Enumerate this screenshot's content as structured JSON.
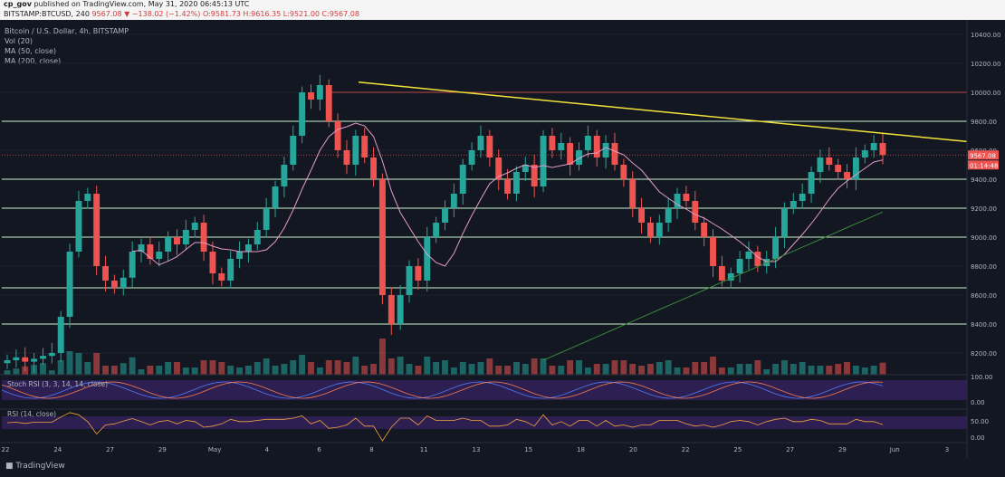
{
  "header": {
    "author": "cp_gov",
    "published_text": "published on TradingView.com, May 31, 2020 06:45:13 UTC",
    "symbol": "BITSTAMP:BTCUSD, 240",
    "last_price": "9567.08",
    "change": "▼ −138.02 (−1.42%)",
    "ohlc": "O:9581.73 H:9616.35 L:9521.00 C:9567.08"
  },
  "legend": {
    "symbol_line": "Bitcoin / U.S. Dollar, 4h, BITSTAMP",
    "vol": "Vol (20)",
    "ma1": "MA (50, close)",
    "ma2": "MA (200, close)"
  },
  "price_tags": {
    "last": "9567.08",
    "countdown": "01:14:48"
  },
  "indicators": {
    "stoch_label": "Stoch RSI (3, 3, 14, 14, close)",
    "rsi_label": "RSI (14, close)",
    "stoch_axis": [
      "100.00",
      "0.00"
    ],
    "rsi_axis": [
      "50.00",
      "0.00"
    ]
  },
  "footer": {
    "brand": "TradingView"
  },
  "colors": {
    "background": "#131722",
    "up": "#26a69a",
    "down": "#ef5350",
    "trendline": "#f2e33a",
    "support": "#c8f5c8",
    "resistance": "#b84a4a",
    "ma50": "#e29cc9",
    "ma200": "#3a8a3a"
  },
  "chart_data": {
    "type": "candlestick",
    "title": "Bitcoin / U.S. Dollar, 4h, BITSTAMP",
    "ylim": [
      8050,
      10500
    ],
    "y_ticks": [
      "10400.00",
      "10200.00",
      "10000.00",
      "9800.00",
      "9600.00",
      "9400.00",
      "9200.00",
      "9000.00",
      "8800.00",
      "8600.00",
      "8400.00",
      "8200.00"
    ],
    "x_ticks": [
      "22",
      "24",
      "27",
      "29",
      "May",
      "4",
      "6",
      "8",
      "11",
      "13",
      "15",
      "18",
      "20",
      "22",
      "25",
      "27",
      "29",
      "Jun",
      "3"
    ],
    "horizontal_levels": {
      "support": [
        9800,
        9400,
        9200,
        9000,
        8650,
        8400
      ],
      "resistance": [
        10000
      ],
      "current": 9567.08
    },
    "trendline": {
      "start": [
        "May 8",
        10070
      ],
      "end": [
        "Jun 1",
        9660
      ]
    },
    "series": [
      {
        "name": "Price (approx. closes)",
        "values": [
          8150,
          8170,
          8140,
          8160,
          8180,
          8200,
          8450,
          8900,
          9250,
          9300,
          8800,
          8700,
          8650,
          8720,
          8900,
          8950,
          8850,
          8900,
          9000,
          8950,
          9050,
          9100,
          8900,
          8750,
          8700,
          8850,
          8900,
          8950,
          9050,
          9200,
          9350,
          9500,
          9700,
          10000,
          9950,
          10050,
          9800,
          9600,
          9500,
          9700,
          9550,
          9400,
          8600,
          8400,
          8600,
          8800,
          8700,
          9000,
          9100,
          9200,
          9300,
          9500,
          9600,
          9700,
          9550,
          9400,
          9300,
          9450,
          9500,
          9350,
          9700,
          9600,
          9650,
          9500,
          9600,
          9700,
          9550,
          9650,
          9500,
          9400,
          9200,
          9100,
          9000,
          9100,
          9200,
          9300,
          9250,
          9100,
          9000,
          8800,
          8700,
          8750,
          8850,
          8900,
          8800,
          8850,
          9000,
          9200,
          9250,
          9300,
          9450,
          9550,
          9500,
          9450,
          9400,
          9550,
          9600,
          9650,
          9567
        ]
      }
    ]
  }
}
